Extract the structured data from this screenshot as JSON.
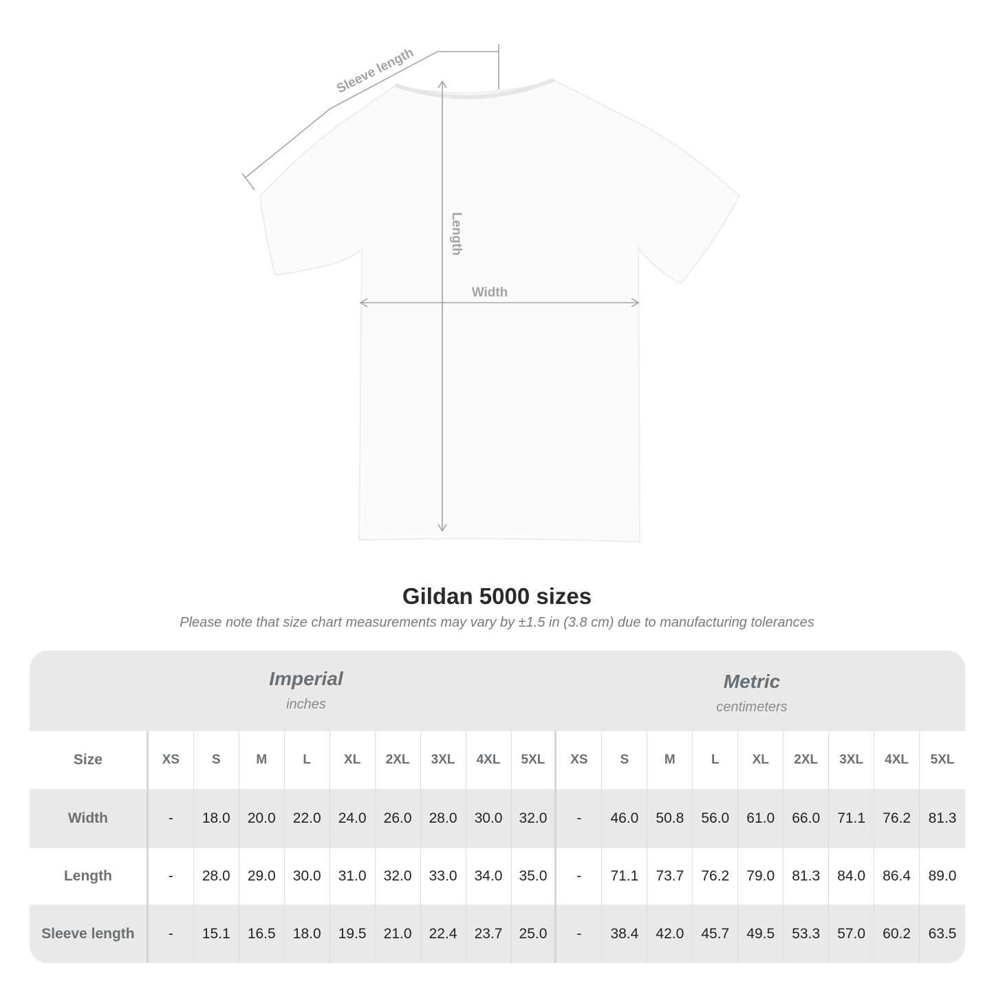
{
  "diagram": {
    "sleeve_label": "Sleeve length",
    "length_label": "Length",
    "width_label": "Width"
  },
  "title": "Gildan 5000 sizes",
  "note": "Please note that size chart measurements may vary by ±1.5 in (3.8 cm) due to manufacturing tolerances",
  "table": {
    "imperial": {
      "name": "Imperial",
      "unit": "inches"
    },
    "metric": {
      "name": "Metric",
      "unit": "centimeters"
    },
    "size_label": "Size",
    "sizes": [
      "XS",
      "S",
      "M",
      "L",
      "XL",
      "2XL",
      "3XL",
      "4XL",
      "5XL"
    ],
    "rows": [
      {
        "label": "Width",
        "imperial": [
          "-",
          "18.0",
          "20.0",
          "22.0",
          "24.0",
          "26.0",
          "28.0",
          "30.0",
          "32.0"
        ],
        "metric": [
          "-",
          "46.0",
          "50.8",
          "56.0",
          "61.0",
          "66.0",
          "71.1",
          "76.2",
          "81.3"
        ]
      },
      {
        "label": "Length",
        "imperial": [
          "-",
          "28.0",
          "29.0",
          "30.0",
          "31.0",
          "32.0",
          "33.0",
          "34.0",
          "35.0"
        ],
        "metric": [
          "-",
          "71.1",
          "73.7",
          "76.2",
          "79.0",
          "81.3",
          "84.0",
          "86.4",
          "89.0"
        ]
      },
      {
        "label": "Sleeve length",
        "imperial": [
          "-",
          "15.1",
          "16.5",
          "18.0",
          "19.5",
          "21.0",
          "22.4",
          "23.7",
          "25.0"
        ],
        "metric": [
          "-",
          "38.4",
          "42.0",
          "45.7",
          "49.5",
          "53.3",
          "57.0",
          "60.2",
          "63.5"
        ]
      }
    ]
  }
}
